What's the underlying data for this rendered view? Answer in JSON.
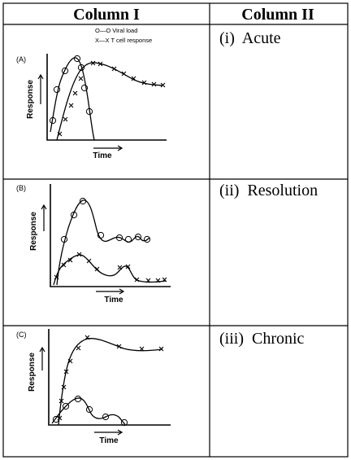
{
  "table": {
    "column_i_header": "Column I",
    "column_ii_header": "Column II"
  },
  "legend": {
    "viral_load": "O—O Viral load",
    "t_cell": "X—X T cell response"
  },
  "panels": [
    {
      "tag": "(A)",
      "y_label": "Response",
      "x_label": "Time",
      "option": "(i)  Acute"
    },
    {
      "tag": "(B)",
      "y_label": "Response",
      "x_label": "Time",
      "option": "(ii)  Resolution"
    },
    {
      "tag": "(C)",
      "y_label": "Response",
      "x_label": "Time",
      "option": "(iii)  Chronic"
    }
  ]
}
